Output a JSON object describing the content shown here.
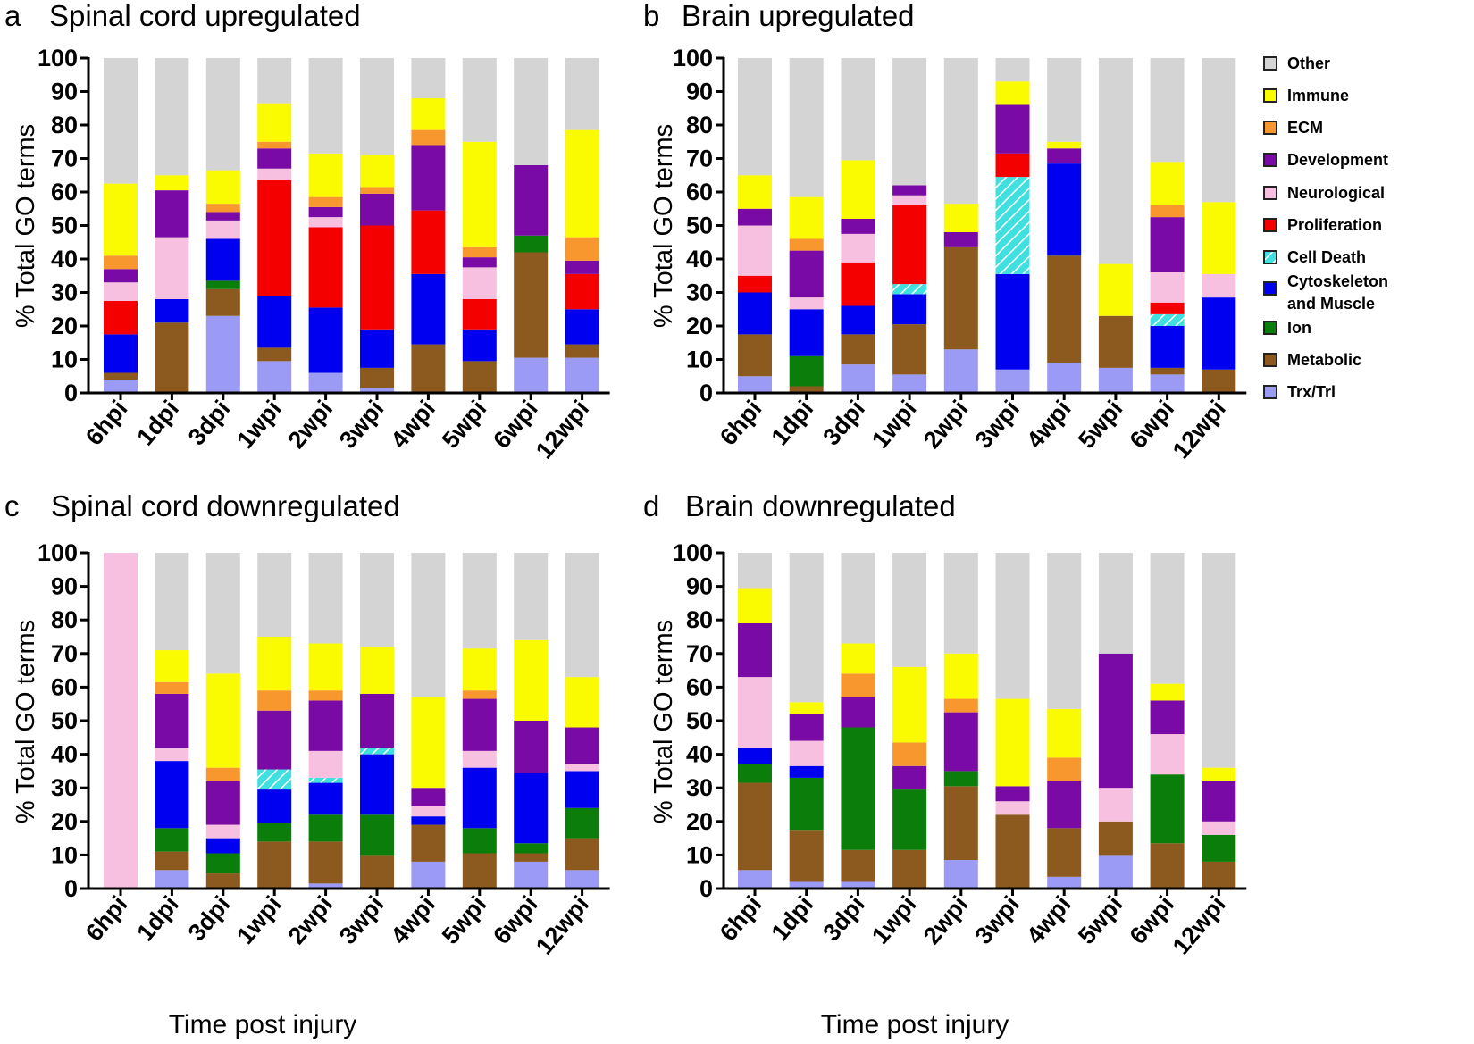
{
  "categories": [
    "Trx/Trl",
    "Metabolic",
    "Ion",
    "Cytoskeleton and Muscle",
    "Cell Death",
    "Proliferation",
    "Neurological",
    "Development",
    "ECM",
    "Immune",
    "Other"
  ],
  "colors": {
    "Trx/Trl": "#9b9bf5",
    "Metabolic": "#8c5a1e",
    "Ion": "#0a7d0a",
    "Cytoskeleton and Muscle": "#0000f0",
    "Cell Death": "#40e0e0",
    "Proliferation": "#f50000",
    "Neurological": "#f8c0e0",
    "Development": "#7a0aa5",
    "ECM": "#f7972e",
    "Immune": "#fafa00",
    "Other": "#d4d4d4"
  },
  "legend": {
    "items": [
      {
        "name": "Other",
        "label": "Other"
      },
      {
        "name": "Immune",
        "label": "Immune"
      },
      {
        "name": "ECM",
        "label": "ECM"
      },
      {
        "name": "Development",
        "label": "Development"
      },
      {
        "name": "Neurological",
        "label": "Neurological"
      },
      {
        "name": "Proliferation",
        "label": "Proliferation"
      },
      {
        "name": "Cell Death",
        "label": "Cell Death"
      },
      {
        "name": "Cytoskeleton and Muscle",
        "label": "Cytoskeleton",
        "label2": "and Muscle"
      },
      {
        "name": "Ion",
        "label": "Ion"
      },
      {
        "name": "Metabolic",
        "label": "Metabolic"
      },
      {
        "name": "Trx/Trl",
        "label": "Trx/Trl"
      }
    ]
  },
  "chart_data": [
    {
      "type": "bar",
      "stacked": true,
      "panel_letter": "a",
      "title": "Spinal cord upregulated",
      "ylabel": "% Total GO terms",
      "xlabel": "",
      "ylim": [
        0,
        100
      ],
      "yticks": [
        0,
        10,
        20,
        30,
        40,
        50,
        60,
        70,
        80,
        90,
        100
      ],
      "categories": [
        "6hpi",
        "1dpi",
        "3dpi",
        "1wpi",
        "2wpi",
        "3wpi",
        "4wpi",
        "5wpi",
        "6wpi",
        "12wpi"
      ],
      "series": [
        {
          "name": "Trx/Trl",
          "values": [
            4,
            0,
            23,
            9.5,
            6,
            1.5,
            0,
            0,
            10.5,
            10.5
          ]
        },
        {
          "name": "Metabolic",
          "values": [
            2,
            21,
            8,
            4,
            0,
            6,
            14.5,
            9.5,
            31.5,
            4
          ]
        },
        {
          "name": "Ion",
          "values": [
            0,
            0,
            2.5,
            0,
            0,
            0,
            0,
            0,
            5,
            0
          ]
        },
        {
          "name": "Cytoskeleton and Muscle",
          "values": [
            11.5,
            7,
            12.5,
            15.5,
            19.5,
            11.5,
            21,
            9.5,
            0,
            10.5
          ]
        },
        {
          "name": "Cell Death",
          "values": [
            0,
            0,
            0,
            0,
            0,
            0,
            0,
            0,
            0,
            0
          ]
        },
        {
          "name": "Proliferation",
          "values": [
            10,
            0,
            0,
            34.5,
            24,
            31,
            19,
            9,
            0,
            10.5
          ]
        },
        {
          "name": "Neurological",
          "values": [
            5.5,
            18.5,
            5.5,
            3.5,
            3,
            0,
            0,
            9.5,
            0,
            0
          ]
        },
        {
          "name": "Development",
          "values": [
            4,
            14,
            2.5,
            6,
            3,
            9.5,
            19.5,
            3,
            21,
            4
          ]
        },
        {
          "name": "ECM",
          "values": [
            4,
            0,
            2.5,
            2,
            3,
            2,
            4.5,
            3,
            0,
            7
          ]
        },
        {
          "name": "Immune",
          "values": [
            21.5,
            4.5,
            10,
            11.5,
            13,
            9.5,
            9.5,
            31.5,
            0,
            32
          ]
        },
        {
          "name": "Other",
          "values": [
            37.5,
            35,
            33.5,
            13.5,
            28.5,
            29,
            12,
            25,
            32,
            21.5
          ]
        }
      ]
    },
    {
      "type": "bar",
      "stacked": true,
      "panel_letter": "b",
      "title": "Brain upregulated",
      "ylabel": "% Total GO terms",
      "xlabel": "",
      "ylim": [
        0,
        100
      ],
      "yticks": [
        0,
        10,
        20,
        30,
        40,
        50,
        60,
        70,
        80,
        90,
        100
      ],
      "categories": [
        "6hpi",
        "1dpi",
        "3dpi",
        "1wpi",
        "2wpi",
        "3wpi",
        "4wpi",
        "5wpi",
        "6wpi",
        "12wpi"
      ],
      "series": [
        {
          "name": "Trx/Trl",
          "values": [
            5,
            0,
            8.5,
            5.5,
            13,
            7,
            9,
            7.5,
            5.5,
            0
          ]
        },
        {
          "name": "Metabolic",
          "values": [
            12.5,
            2,
            9,
            15,
            30.5,
            0,
            32,
            15.5,
            2,
            7
          ]
        },
        {
          "name": "Ion",
          "values": [
            0,
            9,
            0,
            0,
            0,
            0,
            0,
            0,
            0,
            0
          ]
        },
        {
          "name": "Cytoskeleton and Muscle",
          "values": [
            12.5,
            14,
            8.5,
            9,
            0,
            28.5,
            27.5,
            0,
            12.5,
            21.5
          ]
        },
        {
          "name": "Cell Death",
          "values": [
            0,
            0,
            0,
            3,
            0,
            29,
            0,
            0,
            3.5,
            0
          ]
        },
        {
          "name": "Proliferation",
          "values": [
            5,
            0,
            13,
            23.5,
            0,
            7,
            0,
            0,
            3.5,
            0
          ]
        },
        {
          "name": "Neurological",
          "values": [
            15,
            3.5,
            8.5,
            3,
            0,
            0,
            0,
            0,
            9,
            7
          ]
        },
        {
          "name": "Development",
          "values": [
            5,
            14,
            4.5,
            3,
            4.5,
            14.5,
            4.5,
            0,
            16.5,
            0
          ]
        },
        {
          "name": "ECM",
          "values": [
            0,
            3.5,
            0,
            0,
            0,
            0,
            0,
            0,
            3.5,
            0
          ]
        },
        {
          "name": "Immune",
          "values": [
            10,
            12.5,
            17.5,
            0,
            8.5,
            7,
            2,
            15.5,
            13,
            21.5
          ]
        },
        {
          "name": "Other",
          "values": [
            35,
            41.5,
            30.5,
            38,
            43.5,
            7,
            25,
            61.5,
            31,
            43
          ]
        }
      ]
    },
    {
      "type": "bar",
      "stacked": true,
      "panel_letter": "c",
      "title": "Spinal cord downregulated",
      "ylabel": "% Total GO terms",
      "xlabel": "Time post injury",
      "ylim": [
        0,
        100
      ],
      "yticks": [
        0,
        10,
        20,
        30,
        40,
        50,
        60,
        70,
        80,
        90,
        100
      ],
      "categories": [
        "6hpi",
        "1dpi",
        "3dpi",
        "1wpi",
        "2wpi",
        "3wpi",
        "4wpi",
        "5wpi",
        "6wpi",
        "12wpi"
      ],
      "series": [
        {
          "name": "Trx/Trl",
          "values": [
            0,
            5.5,
            0,
            0,
            1.5,
            0,
            8,
            0,
            8,
            5.5
          ]
        },
        {
          "name": "Metabolic",
          "values": [
            0,
            5.5,
            4.5,
            14,
            12.5,
            10,
            11,
            10.5,
            2.5,
            9.5
          ]
        },
        {
          "name": "Ion",
          "values": [
            0,
            7,
            6,
            5.5,
            8,
            12,
            0,
            7.5,
            3,
            9
          ]
        },
        {
          "name": "Cytoskeleton and Muscle",
          "values": [
            0,
            20,
            4.5,
            10,
            9.5,
            18,
            2.5,
            18,
            21,
            11
          ]
        },
        {
          "name": "Cell Death",
          "values": [
            0,
            0,
            0,
            6,
            1.5,
            2,
            0,
            0,
            0,
            0
          ]
        },
        {
          "name": "Proliferation",
          "values": [
            0,
            0,
            0,
            0,
            0,
            0,
            0,
            0,
            0,
            0
          ]
        },
        {
          "name": "Neurological",
          "values": [
            100,
            4,
            4,
            0,
            8,
            0,
            3,
            5,
            0,
            2
          ]
        },
        {
          "name": "Development",
          "values": [
            0,
            16,
            13,
            17.5,
            15,
            16,
            5.5,
            15.5,
            15.5,
            11
          ]
        },
        {
          "name": "ECM",
          "values": [
            0,
            3.5,
            4,
            6,
            3,
            0,
            0,
            2.5,
            0,
            0
          ]
        },
        {
          "name": "Immune",
          "values": [
            0,
            9.5,
            28,
            16,
            14,
            14,
            27,
            12.5,
            24,
            15
          ]
        },
        {
          "name": "Other",
          "values": [
            0,
            29,
            36,
            25,
            27,
            28,
            43,
            28.5,
            26,
            37
          ]
        }
      ]
    },
    {
      "type": "bar",
      "stacked": true,
      "panel_letter": "d",
      "title": "Brain downregulated",
      "ylabel": "% Total GO terms",
      "xlabel": "Time post injury",
      "ylim": [
        0,
        100
      ],
      "yticks": [
        0,
        10,
        20,
        30,
        40,
        50,
        60,
        70,
        80,
        90,
        100
      ],
      "categories": [
        "6hpi",
        "1dpi",
        "3dpi",
        "1wpi",
        "2wpi",
        "3wpi",
        "4wpi",
        "5wpi",
        "6wpi",
        "12wpi"
      ],
      "series": [
        {
          "name": "Trx/Trl",
          "values": [
            5.5,
            2,
            2,
            0,
            8.5,
            0,
            3.5,
            10,
            0,
            0
          ]
        },
        {
          "name": "Metabolic",
          "values": [
            26,
            15.5,
            9.5,
            11.5,
            22,
            22,
            14.5,
            10,
            13.5,
            8
          ]
        },
        {
          "name": "Ion",
          "values": [
            5.5,
            15.5,
            36.5,
            18,
            4.5,
            0,
            0,
            0,
            20.5,
            8
          ]
        },
        {
          "name": "Cytoskeleton and Muscle",
          "values": [
            5,
            3.5,
            0,
            0,
            0,
            0,
            0,
            0,
            0,
            0
          ]
        },
        {
          "name": "Cell Death",
          "values": [
            0,
            0,
            0,
            0,
            0,
            0,
            0,
            0,
            0,
            0
          ]
        },
        {
          "name": "Proliferation",
          "values": [
            0,
            0,
            0,
            0,
            0,
            0,
            0,
            0,
            0,
            0
          ]
        },
        {
          "name": "Neurological",
          "values": [
            21,
            7.5,
            0,
            0,
            0,
            4,
            0,
            10,
            12,
            4
          ]
        },
        {
          "name": "Development",
          "values": [
            16,
            8,
            9,
            7,
            17.5,
            4.5,
            14,
            40,
            10,
            12
          ]
        },
        {
          "name": "ECM",
          "values": [
            0,
            0,
            7,
            7,
            4,
            0,
            7,
            0,
            0,
            0
          ]
        },
        {
          "name": "Immune",
          "values": [
            10.5,
            3.5,
            9,
            22.5,
            13.5,
            26,
            14.5,
            0,
            5,
            4
          ]
        },
        {
          "name": "Other",
          "values": [
            10.5,
            44.5,
            27,
            34,
            30,
            43.5,
            46.5,
            30,
            39,
            64
          ]
        }
      ]
    }
  ]
}
